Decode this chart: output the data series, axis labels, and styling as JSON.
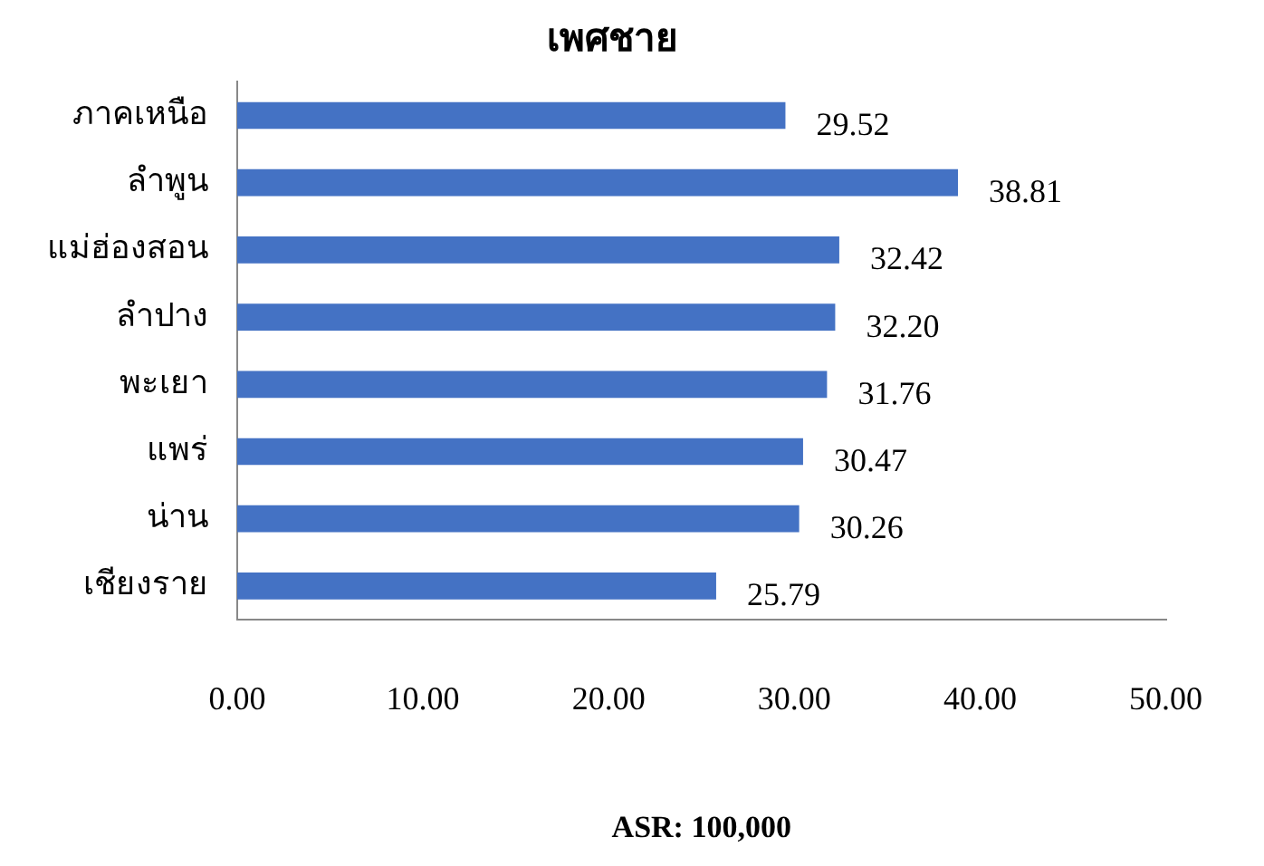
{
  "chart_data": {
    "type": "bar",
    "orientation": "horizontal",
    "title": "เพศชาย",
    "xlabel": "ASR: 100,000",
    "categories": [
      "ภาคเหนือ",
      "ลำพูน",
      "แม่ฮ่องสอน",
      "ลำปาง",
      "พะเยา",
      "แพร่",
      "น่าน",
      "เชียงราย"
    ],
    "values": [
      29.52,
      38.81,
      32.42,
      32.2,
      31.76,
      30.47,
      30.26,
      25.79
    ],
    "value_labels": [
      "29.52",
      "38.81",
      "32.42",
      "32.20",
      "31.76",
      "30.47",
      "30.26",
      "25.79"
    ],
    "color": "#4472c4",
    "xlim": [
      0,
      50
    ],
    "xticks": [
      {
        "value": 0,
        "label": "0.00"
      },
      {
        "value": 10,
        "label": "10.00"
      },
      {
        "value": 20,
        "label": "20.00"
      },
      {
        "value": 30,
        "label": "30.00"
      },
      {
        "value": 40,
        "label": "40.00"
      },
      {
        "value": 50,
        "label": "50.00"
      }
    ],
    "grid": false,
    "legend": false
  }
}
